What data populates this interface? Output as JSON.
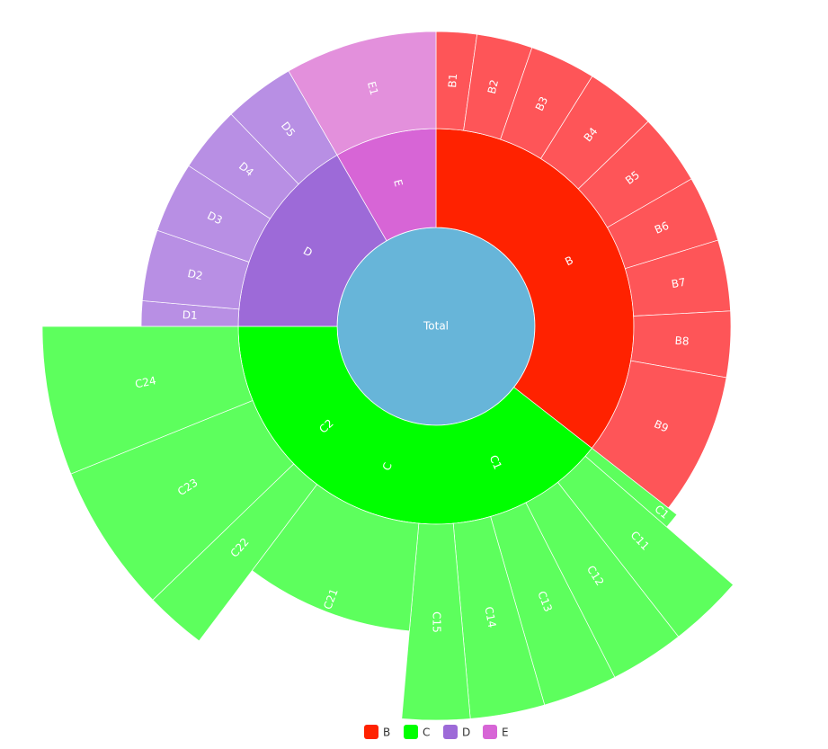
{
  "chart_data": {
    "type": "sunburst",
    "root": {
      "name": "Total",
      "color": "#67b5d9",
      "children": [
        {
          "name": "B",
          "color": "#ff2200",
          "leaf_color": "#fe5558",
          "children": [
            {
              "name": "B1",
              "value": 8
            },
            {
              "name": "B2",
              "value": 11
            },
            {
              "name": "B3",
              "value": 13
            },
            {
              "name": "B4",
              "value": 14
            },
            {
              "name": "B5",
              "value": 14
            },
            {
              "name": "B6",
              "value": 13
            },
            {
              "name": "B7",
              "value": 14
            },
            {
              "name": "B8",
              "value": 13
            },
            {
              "name": "B9",
              "value": 28
            }
          ]
        },
        {
          "name": "C",
          "color": "#00ff00",
          "leaf_color": "#5dff5d",
          "children": [
            {
              "name": "C1",
              "color": "#00ff00",
              "children": [
                {
                  "name": "C1",
                  "value": 3
                },
                {
                  "name": "C11",
                  "value": 11
                },
                {
                  "name": "C12",
                  "value": 11
                },
                {
                  "name": "C13",
                  "value": 11
                },
                {
                  "name": "C14",
                  "value": 11
                },
                {
                  "name": "C15",
                  "value": 10
                }
              ]
            },
            {
              "name": "C2",
              "color": "#00ff00",
              "children": [
                {
                  "name": "C21",
                  "value": 32
                },
                {
                  "name": "C22",
                  "value": 9
                },
                {
                  "name": "C23",
                  "value": 22
                },
                {
                  "name": "C24",
                  "value": 22
                }
              ]
            }
          ]
        },
        {
          "name": "D",
          "color": "#9d6ad8",
          "leaf_color": "#b88fe4",
          "children": [
            {
              "name": "D1",
              "value": 5
            },
            {
              "name": "D2",
              "value": 14
            },
            {
              "name": "D3",
              "value": 14
            },
            {
              "name": "D4",
              "value": 13
            },
            {
              "name": "D5",
              "value": 14
            }
          ]
        },
        {
          "name": "E",
          "color": "#d765d6",
          "leaf_color": "#e390dc",
          "children": [
            {
              "name": "E1",
              "value": 30
            }
          ]
        }
      ]
    }
  }
}
